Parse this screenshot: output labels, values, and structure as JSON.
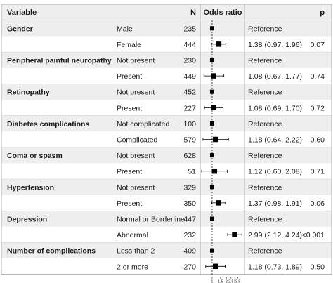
{
  "header": {
    "variable": "Variable",
    "n": "N",
    "odds_ratio": "Odds ratio",
    "p": "p"
  },
  "colors": {
    "stripe": "#eeeeee",
    "grid_line": "#bdbdbd",
    "marker": "#000000",
    "text": "#1a1a1a"
  },
  "chart_data": {
    "type": "forest",
    "scale": "log",
    "reference_line": 1,
    "x_ticks": [
      "1",
      "1.5",
      "2",
      "2.5",
      "3",
      "3.5"
    ],
    "x_tick_values": [
      1,
      1.5,
      2,
      2.5,
      3,
      3.5
    ],
    "xlim": [
      0.6,
      4.5
    ],
    "groups": [
      {
        "variable": "Gender",
        "rows": [
          {
            "level": "Male",
            "n": "235",
            "or_text": "Reference",
            "p": "",
            "est": 1,
            "lo": null,
            "hi": null
          },
          {
            "level": "Female",
            "n": "444",
            "or_text": "1.38 (0.97, 1.96)",
            "p": "0.07",
            "est": 1.38,
            "lo": 0.97,
            "hi": 1.96
          }
        ]
      },
      {
        "variable": "Peripheral painful neuropathy",
        "rows": [
          {
            "level": "Not present",
            "n": "230",
            "or_text": "Reference",
            "p": "",
            "est": 1,
            "lo": null,
            "hi": null
          },
          {
            "level": "Present",
            "n": "449",
            "or_text": "1.08 (0.67, 1.77)",
            "p": "0.74",
            "est": 1.08,
            "lo": 0.67,
            "hi": 1.77
          }
        ]
      },
      {
        "variable": "Retinopathy",
        "rows": [
          {
            "level": "Not present",
            "n": "452",
            "or_text": "Reference",
            "p": "",
            "est": 1,
            "lo": null,
            "hi": null
          },
          {
            "level": "Present",
            "n": "227",
            "or_text": "1.08 (0.69, 1.70)",
            "p": "0.72",
            "est": 1.08,
            "lo": 0.69,
            "hi": 1.7
          }
        ]
      },
      {
        "variable": "Diabetes complications",
        "rows": [
          {
            "level": "Not complicated",
            "n": "100",
            "or_text": "Reference",
            "p": "",
            "est": 1,
            "lo": null,
            "hi": null
          },
          {
            "level": "Complicated",
            "n": "579",
            "or_text": "1.18 (0.64, 2.22)",
            "p": "0.60",
            "est": 1.18,
            "lo": 0.64,
            "hi": 2.22
          }
        ]
      },
      {
        "variable": "Coma or spasm",
        "rows": [
          {
            "level": "Not present",
            "n": "628",
            "or_text": "Reference",
            "p": "",
            "est": 1,
            "lo": null,
            "hi": null
          },
          {
            "level": "Present",
            "n": "51",
            "or_text": "1.12 (0.60, 2.08)",
            "p": "0.71",
            "est": 1.12,
            "lo": 0.6,
            "hi": 2.08
          }
        ]
      },
      {
        "variable": "Hypertension",
        "rows": [
          {
            "level": "Not present",
            "n": "329",
            "or_text": "Reference",
            "p": "",
            "est": 1,
            "lo": null,
            "hi": null
          },
          {
            "level": "Present",
            "n": "350",
            "or_text": "1.37 (0.98, 1.91)",
            "p": "0.06",
            "est": 1.37,
            "lo": 0.98,
            "hi": 1.91
          }
        ]
      },
      {
        "variable": "Depression",
        "rows": [
          {
            "level": "Normal or Borderline",
            "n": "447",
            "or_text": "Reference",
            "p": "",
            "est": 1,
            "lo": null,
            "hi": null
          },
          {
            "level": "Abnormal",
            "n": "232",
            "or_text": "2.99 (2.12, 4.24)",
            "p": "<0.001",
            "est": 2.99,
            "lo": 2.12,
            "hi": 4.24
          }
        ]
      },
      {
        "variable": "Number of complications",
        "rows": [
          {
            "level": "Less than 2",
            "n": "409",
            "or_text": "Reference",
            "p": "",
            "est": 1,
            "lo": null,
            "hi": null
          },
          {
            "level": "2 or more",
            "n": "270",
            "or_text": "1.18 (0.73, 1.89)",
            "p": "0.50",
            "est": 1.18,
            "lo": 0.73,
            "hi": 1.89
          }
        ]
      }
    ]
  }
}
